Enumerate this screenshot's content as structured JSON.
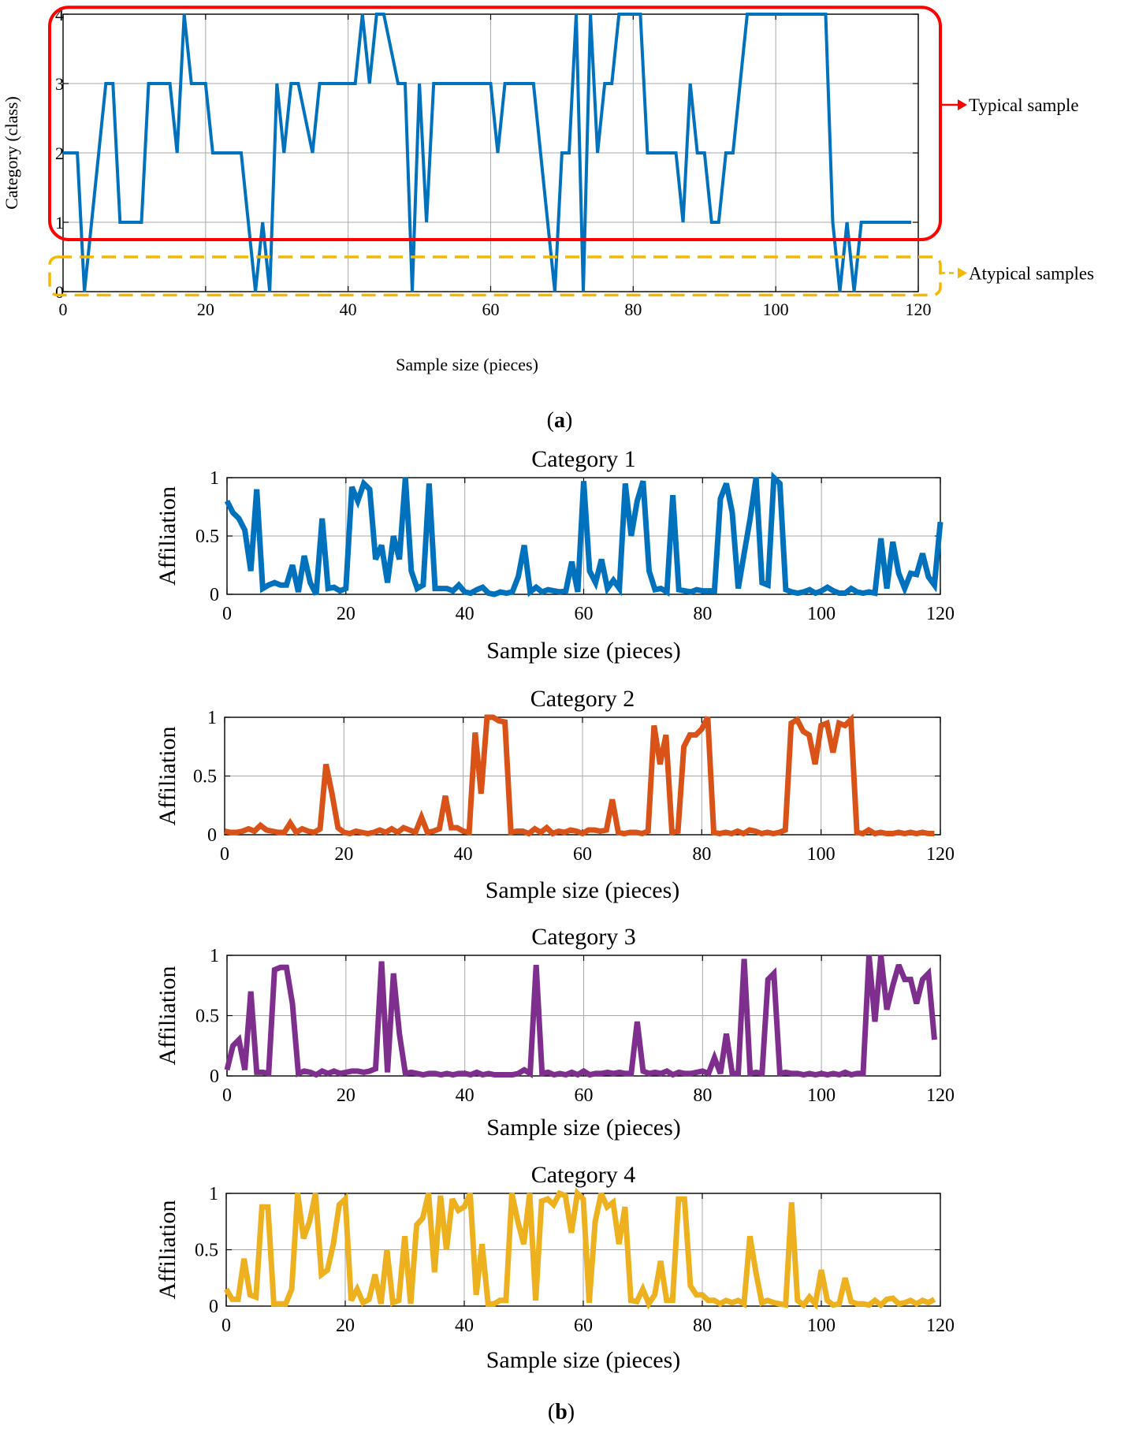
{
  "chart_data": [
    {
      "id": "a",
      "type": "line",
      "panel_label": "a",
      "xlabel": "Sample size (pieces)",
      "ylabel": "Category (class)",
      "xlim": [
        0,
        120
      ],
      "ylim": [
        0,
        4
      ],
      "xticks": [
        0,
        20,
        40,
        60,
        80,
        100,
        120
      ],
      "yticks": [
        0,
        1,
        2,
        3,
        4
      ],
      "grid": true,
      "series": [
        {
          "name": "Category",
          "color": "#0072bd",
          "x": [
            0,
            2,
            3,
            4,
            6,
            7,
            8,
            11,
            12,
            15,
            16,
            17,
            18,
            20,
            21,
            25,
            27,
            28,
            29,
            30,
            31,
            32,
            33,
            35,
            36,
            37,
            41,
            42,
            43,
            44,
            45,
            47,
            48,
            49,
            50,
            51,
            52,
            53,
            60,
            61,
            62,
            66,
            67,
            69,
            70,
            71,
            72,
            73,
            74,
            75,
            76,
            77,
            78,
            79,
            81,
            82,
            83,
            86,
            87,
            88,
            89,
            90,
            91,
            92,
            93,
            94,
            96,
            97,
            107,
            108,
            109,
            110,
            111,
            112,
            119
          ],
          "y": [
            2,
            2,
            0,
            1,
            3,
            3,
            1,
            1,
            3,
            3,
            2,
            4,
            3,
            3,
            2,
            2,
            0,
            1,
            0,
            3,
            2,
            3,
            3,
            2,
            3,
            3,
            3,
            4,
            3,
            4,
            4,
            3,
            3,
            0,
            3,
            1,
            3,
            3,
            3,
            2,
            3,
            3,
            2,
            0,
            2,
            2,
            4,
            0,
            4,
            2,
            3,
            3,
            4,
            4,
            4,
            2,
            2,
            2,
            1,
            3,
            2,
            2,
            1,
            1,
            2,
            2,
            4,
            4,
            4,
            1,
            0,
            1,
            0,
            1,
            1
          ],
          "legend_style": "none"
        }
      ],
      "annotations": [
        {
          "label": "Typical sample",
          "color": "#ff0000",
          "style": "solid rounded box",
          "y_range": [
            0.75,
            4.1
          ]
        },
        {
          "label": "Atypical samples",
          "color": "#f5b800",
          "style": "dashed rounded box",
          "y_range": [
            -0.05,
            0.5
          ]
        }
      ]
    },
    {
      "id": "b1",
      "type": "line",
      "panel_label": "b",
      "title": "Category 1",
      "xlabel": "Sample size (pieces)",
      "ylabel": "Affiliation",
      "xlim": [
        0,
        120
      ],
      "ylim": [
        0,
        1
      ],
      "xticks": [
        0,
        20,
        40,
        60,
        80,
        100,
        120
      ],
      "yticks": [
        0,
        0.5,
        1
      ],
      "ytick_labels": [
        "0",
        "0.5",
        "1"
      ],
      "grid": true,
      "series": [
        {
          "name": "Category 1",
          "color": "#0072bd",
          "values": [
            0.8,
            0.7,
            0.65,
            0.55,
            0.2,
            0.9,
            0.05,
            0.08,
            0.1,
            0.08,
            0.08,
            0.25,
            0.02,
            0.33,
            0.1,
            0.0,
            0.65,
            0.05,
            0.06,
            0.03,
            0.05,
            0.92,
            0.8,
            0.95,
            0.9,
            0.3,
            0.42,
            0.1,
            0.5,
            0.3,
            1.0,
            0.2,
            0.05,
            0.08,
            0.95,
            0.05,
            0.05,
            0.05,
            0.03,
            0.08,
            0.02,
            0.01,
            0.04,
            0.06,
            0.01,
            0.0,
            0.02,
            0.01,
            0.02,
            0.15,
            0.42,
            0.02,
            0.06,
            0.02,
            0.04,
            0.03,
            0.02,
            0.03,
            0.28,
            0.02,
            0.97,
            0.2,
            0.1,
            0.3,
            0.05,
            0.12,
            0.05,
            0.95,
            0.5,
            0.8,
            0.97,
            0.2,
            0.04,
            0.05,
            0.02,
            0.85,
            0.04,
            0.03,
            0.02,
            0.04,
            0.03,
            0.03,
            0.03,
            0.82,
            0.95,
            0.7,
            0.05,
            0.35,
            0.65,
            1.0,
            0.1,
            0.08,
            1.0,
            0.95,
            0.04,
            0.02,
            0.01,
            0.02,
            0.04,
            0.01,
            0.03,
            0.06,
            0.03,
            0.01,
            0.01,
            0.05,
            0.02,
            0.01,
            0.02,
            0.01,
            0.48,
            0.05,
            0.45,
            0.18,
            0.05,
            0.18,
            0.17,
            0.35,
            0.15,
            0.08,
            0.62
          ]
        }
      ]
    },
    {
      "id": "b2",
      "type": "line",
      "title": "Category 2",
      "xlabel": "Sample size (pieces)",
      "ylabel": "Affiliation",
      "xlim": [
        0,
        120
      ],
      "ylim": [
        0,
        1
      ],
      "xticks": [
        0,
        20,
        40,
        60,
        80,
        100,
        120
      ],
      "yticks": [
        0,
        0.5,
        1
      ],
      "ytick_labels": [
        "0",
        "0.5",
        "1"
      ],
      "grid": true,
      "series": [
        {
          "name": "Category 2",
          "color": "#d95319",
          "values": [
            0.03,
            0.02,
            0.02,
            0.03,
            0.05,
            0.03,
            0.08,
            0.04,
            0.03,
            0.02,
            0.02,
            0.1,
            0.02,
            0.05,
            0.03,
            0.02,
            0.05,
            0.6,
            0.35,
            0.06,
            0.02,
            0.01,
            0.03,
            0.02,
            0.01,
            0.02,
            0.04,
            0.02,
            0.05,
            0.02,
            0.06,
            0.04,
            0.02,
            0.15,
            0.02,
            0.03,
            0.05,
            0.33,
            0.06,
            0.06,
            0.03,
            0.02,
            0.87,
            0.35,
            1.0,
            1.0,
            0.97,
            0.96,
            0.02,
            0.03,
            0.03,
            0.01,
            0.05,
            0.02,
            0.06,
            0.01,
            0.03,
            0.02,
            0.04,
            0.03,
            0.01,
            0.04,
            0.04,
            0.03,
            0.04,
            0.3,
            0.02,
            0.01,
            0.02,
            0.02,
            0.01,
            0.03,
            0.93,
            0.6,
            0.85,
            0.02,
            0.03,
            0.75,
            0.85,
            0.85,
            0.9,
            1.0,
            0.02,
            0.01,
            0.02,
            0.01,
            0.03,
            0.01,
            0.04,
            0.03,
            0.01,
            0.02,
            0.01,
            0.02,
            0.04,
            0.95,
            0.98,
            0.88,
            0.85,
            0.6,
            0.93,
            0.95,
            0.7,
            0.95,
            0.93,
            0.98,
            0.02,
            0.01,
            0.04,
            0.01,
            0.02,
            0.01,
            0.01,
            0.02,
            0.01,
            0.02,
            0.01,
            0.02,
            0.01,
            0.01
          ]
        }
      ]
    },
    {
      "id": "b3",
      "type": "line",
      "title": "Category 3",
      "xlabel": "Sample size (pieces)",
      "ylabel": "Affiliation",
      "xlim": [
        0,
        120
      ],
      "ylim": [
        0,
        1
      ],
      "xticks": [
        0,
        20,
        40,
        60,
        80,
        100,
        120
      ],
      "yticks": [
        0,
        0.5,
        1
      ],
      "ytick_labels": [
        "0",
        "0.5",
        "1"
      ],
      "grid": true,
      "series": [
        {
          "name": "Category 3",
          "color": "#7e2f8e",
          "values": [
            0.05,
            0.25,
            0.3,
            0.05,
            0.7,
            0.03,
            0.03,
            0.02,
            0.88,
            0.9,
            0.9,
            0.6,
            0.02,
            0.04,
            0.03,
            0.01,
            0.04,
            0.02,
            0.04,
            0.02,
            0.03,
            0.04,
            0.04,
            0.03,
            0.04,
            0.06,
            0.95,
            0.03,
            0.85,
            0.35,
            0.02,
            0.03,
            0.02,
            0.01,
            0.02,
            0.02,
            0.01,
            0.02,
            0.01,
            0.02,
            0.02,
            0.01,
            0.03,
            0.01,
            0.02,
            0.01,
            0.01,
            0.01,
            0.01,
            0.02,
            0.05,
            0.02,
            0.92,
            0.02,
            0.03,
            0.01,
            0.02,
            0.01,
            0.03,
            0.01,
            0.04,
            0.01,
            0.02,
            0.02,
            0.03,
            0.02,
            0.03,
            0.02,
            0.02,
            0.45,
            0.04,
            0.02,
            0.03,
            0.02,
            0.04,
            0.01,
            0.03,
            0.02,
            0.02,
            0.03,
            0.04,
            0.02,
            0.15,
            0.02,
            0.35,
            0.02,
            0.02,
            0.97,
            0.02,
            0.03,
            0.02,
            0.8,
            0.85,
            0.02,
            0.03,
            0.02,
            0.02,
            0.01,
            0.02,
            0.01,
            0.02,
            0.01,
            0.02,
            0.01,
            0.03,
            0.01,
            0.02,
            0.02,
            1.0,
            0.45,
            1.0,
            0.55,
            0.75,
            0.92,
            0.8,
            0.8,
            0.6,
            0.8,
            0.85,
            0.3
          ]
        }
      ]
    },
    {
      "id": "b4",
      "type": "line",
      "title": "Category 4",
      "xlabel": "Sample size (pieces)",
      "ylabel": "Affiliation",
      "xlim": [
        0,
        120
      ],
      "ylim": [
        0,
        1
      ],
      "xticks": [
        0,
        20,
        40,
        60,
        80,
        100,
        120
      ],
      "yticks": [
        0,
        0.5,
        1
      ],
      "ytick_labels": [
        "0",
        "0.5",
        "1"
      ],
      "grid": true,
      "series": [
        {
          "name": "Category 4",
          "color": "#edb120",
          "values": [
            0.15,
            0.06,
            0.06,
            0.42,
            0.1,
            0.08,
            0.88,
            0.88,
            0.02,
            0.02,
            0.02,
            0.15,
            1.0,
            0.6,
            0.75,
            1.0,
            0.28,
            0.32,
            0.55,
            0.9,
            0.95,
            0.05,
            0.15,
            0.03,
            0.06,
            0.28,
            0.02,
            0.5,
            0.03,
            0.05,
            0.62,
            0.02,
            0.72,
            0.78,
            1.0,
            0.3,
            0.98,
            0.5,
            0.95,
            0.85,
            0.88,
            1.0,
            0.1,
            0.55,
            0.02,
            0.02,
            0.05,
            0.05,
            1.0,
            0.75,
            0.55,
            1.0,
            0.05,
            0.93,
            0.95,
            0.9,
            1.0,
            0.98,
            0.65,
            1.0,
            0.95,
            0.03,
            0.75,
            1.0,
            0.88,
            0.92,
            0.55,
            0.88,
            0.05,
            0.04,
            0.15,
            0.02,
            0.1,
            0.4,
            0.05,
            0.05,
            0.95,
            0.95,
            0.18,
            0.1,
            0.1,
            0.05,
            0.05,
            0.02,
            0.05,
            0.03,
            0.05,
            0.02,
            0.62,
            0.3,
            0.03,
            0.05,
            0.03,
            0.02,
            0.01,
            0.92,
            0.05,
            0.01,
            0.08,
            0.02,
            0.32,
            0.05,
            0.01,
            0.02,
            0.25,
            0.04,
            0.02,
            0.02,
            0.01,
            0.05,
            0.01,
            0.06,
            0.07,
            0.02,
            0.03,
            0.05,
            0.02,
            0.05,
            0.03,
            0.06
          ]
        }
      ]
    }
  ]
}
